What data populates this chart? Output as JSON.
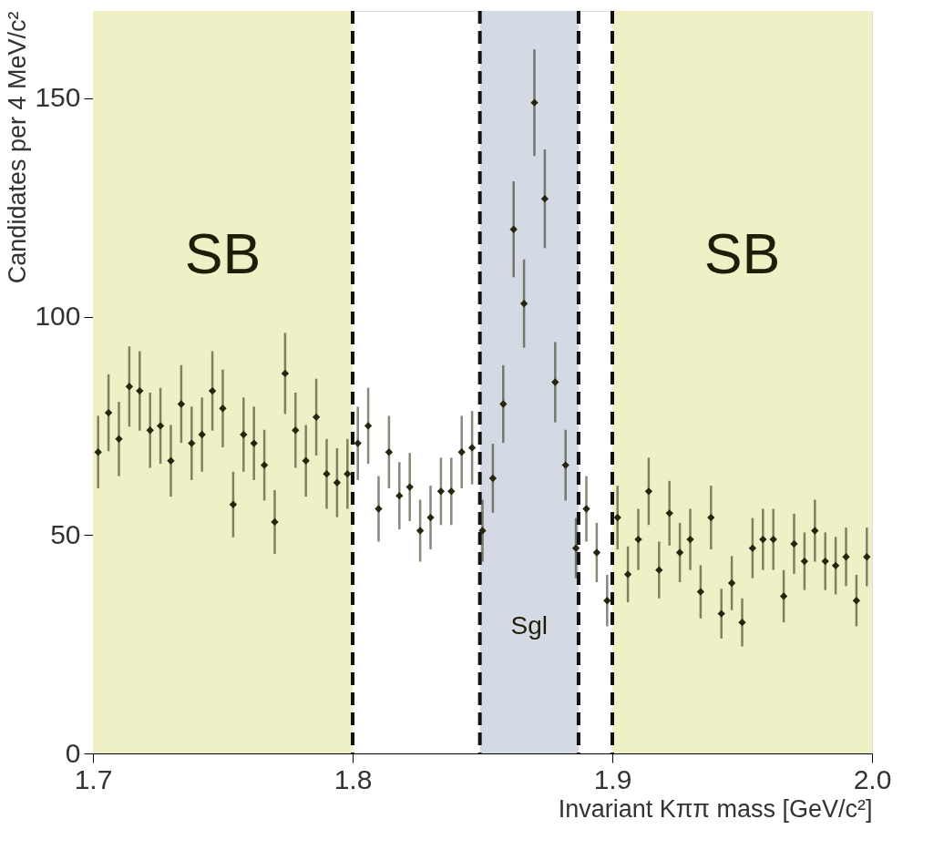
{
  "chart_data": {
    "type": "scatter",
    "xlabel": "Invariant Kππ mass [GeV/c²]",
    "ylabel": "Candidates per 4 MeV/c²",
    "x": [
      1.702,
      1.706,
      1.71,
      1.714,
      1.718,
      1.722,
      1.726,
      1.73,
      1.734,
      1.738,
      1.742,
      1.746,
      1.75,
      1.754,
      1.758,
      1.762,
      1.766,
      1.77,
      1.774,
      1.778,
      1.782,
      1.786,
      1.79,
      1.794,
      1.798,
      1.802,
      1.806,
      1.81,
      1.814,
      1.818,
      1.822,
      1.826,
      1.83,
      1.834,
      1.838,
      1.842,
      1.846,
      1.85,
      1.854,
      1.858,
      1.862,
      1.866,
      1.87,
      1.874,
      1.878,
      1.882,
      1.886,
      1.89,
      1.894,
      1.898,
      1.902,
      1.906,
      1.91,
      1.914,
      1.918,
      1.922,
      1.926,
      1.93,
      1.934,
      1.938,
      1.942,
      1.946,
      1.95,
      1.954,
      1.958,
      1.962,
      1.966,
      1.97,
      1.974,
      1.978,
      1.982,
      1.986,
      1.99,
      1.994,
      1.998
    ],
    "series": [
      {
        "color": "#26260e",
        "values": [
          69,
          78,
          72,
          84,
          83,
          74,
          75,
          67,
          80,
          71,
          73,
          83,
          79,
          57,
          73,
          71,
          66,
          53,
          87,
          74,
          67,
          77,
          64,
          62,
          64,
          71,
          75,
          56,
          69,
          59,
          61,
          51,
          54,
          60,
          60,
          69,
          70,
          51,
          63,
          80,
          120,
          103,
          149,
          127,
          85,
          66,
          47,
          56,
          46,
          35,
          54,
          41,
          49,
          60,
          42,
          55,
          46,
          49,
          37,
          54,
          32,
          39,
          30,
          47,
          49,
          49,
          36,
          48,
          44,
          51,
          44,
          43,
          45,
          35,
          45
        ],
        "errors": [
          8.3,
          8.8,
          8.5,
          9.2,
          9.1,
          8.6,
          8.7,
          8.2,
          8.9,
          8.4,
          8.5,
          9.1,
          8.9,
          7.5,
          8.5,
          8.4,
          8.1,
          7.3,
          9.3,
          8.6,
          8.2,
          8.8,
          8,
          7.9,
          8,
          8.4,
          8.7,
          7.5,
          8.3,
          7.7,
          7.8,
          7.1,
          7.3,
          7.7,
          7.7,
          8.3,
          8.4,
          7.1,
          7.9,
          8.9,
          11,
          10.1,
          12.2,
          11.3,
          9.2,
          8.1,
          6.9,
          7.5,
          6.8,
          5.9,
          7.3,
          6.4,
          7,
          7.7,
          6.5,
          7.4,
          6.8,
          7,
          6.1,
          7.3,
          5.7,
          6.2,
          5.5,
          6.9,
          7,
          7,
          6,
          6.9,
          6.6,
          7.1,
          6.6,
          6.6,
          6.7,
          5.9,
          6.7
        ]
      }
    ],
    "marker": "diamond",
    "xlim": [
      1.7,
      2.0
    ],
    "xticks": [
      {
        "value": 1.7,
        "label": "1.7"
      },
      {
        "value": 1.8,
        "label": "1.8"
      },
      {
        "value": 1.9,
        "label": "1.9"
      },
      {
        "value": 2.0,
        "label": "2.0"
      }
    ],
    "ylim": [
      0,
      170
    ],
    "yticks": [
      0,
      50,
      100,
      150
    ],
    "bands": [
      {
        "axis": "x",
        "from": 1.7,
        "to": 1.8,
        "label": "SB",
        "color": "#f0f0c6"
      },
      {
        "axis": "x",
        "from": 1.849,
        "to": 1.887,
        "label": "Sgl",
        "color": "#d4dae4"
      },
      {
        "axis": "x",
        "from": 1.9,
        "to": 2.0,
        "label": "SB",
        "color": "#f0f0c6"
      }
    ],
    "ref_lines": [
      {
        "axis": "x",
        "value": 1.8,
        "color": "#111111",
        "line_style": "dashed"
      },
      {
        "axis": "x",
        "value": 1.849,
        "color": "#111111",
        "line_style": "dashed"
      },
      {
        "axis": "x",
        "value": 1.887,
        "color": "#111111",
        "line_style": "dashed"
      },
      {
        "axis": "x",
        "value": 1.9,
        "color": "#111111",
        "line_style": "dashed"
      }
    ],
    "grid": false
  }
}
